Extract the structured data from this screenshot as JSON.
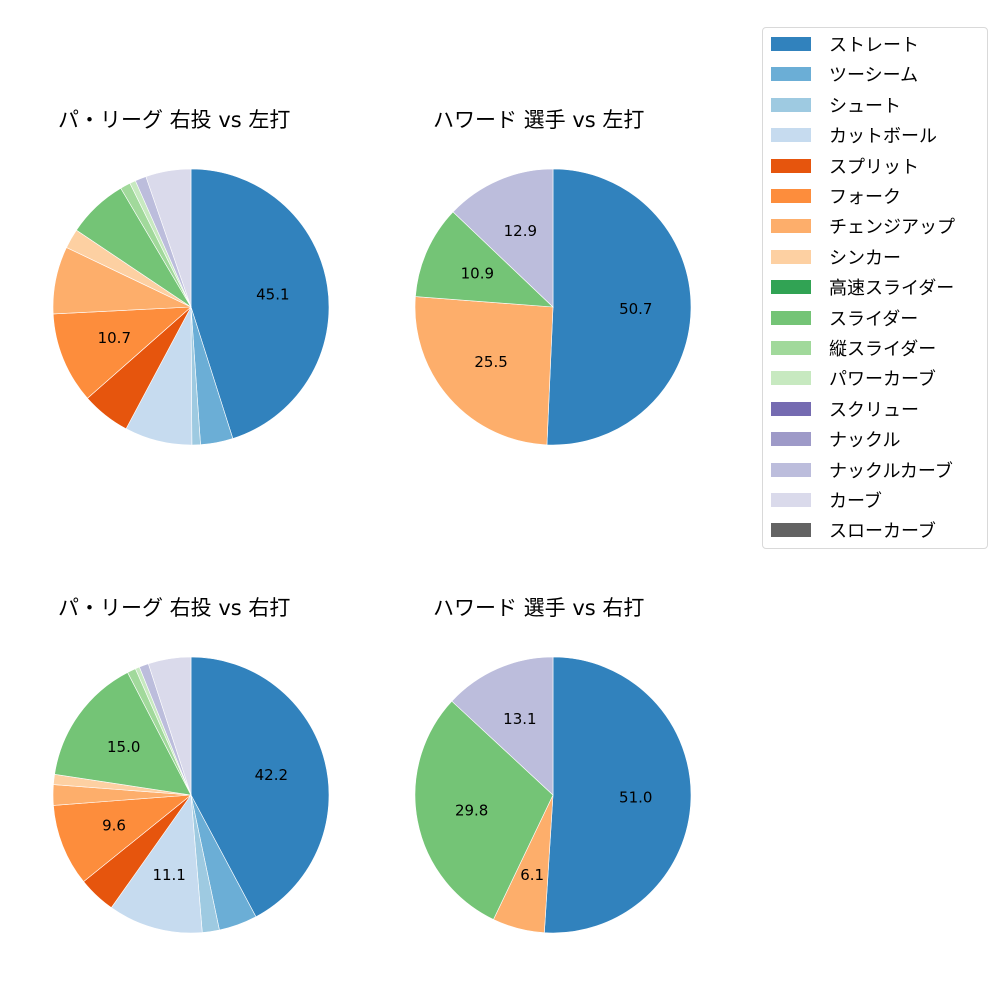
{
  "legend": {
    "items": [
      {
        "label": "ストレート",
        "color": "#3182bd"
      },
      {
        "label": "ツーシーム",
        "color": "#6baed6"
      },
      {
        "label": "シュート",
        "color": "#9ecae1"
      },
      {
        "label": "カットボール",
        "color": "#c6dbef"
      },
      {
        "label": "スプリット",
        "color": "#e6550d"
      },
      {
        "label": "フォーク",
        "color": "#fd8d3c"
      },
      {
        "label": "チェンジアップ",
        "color": "#fdae6b"
      },
      {
        "label": "シンカー",
        "color": "#fdd0a2"
      },
      {
        "label": "高速スライダー",
        "color": "#31a354"
      },
      {
        "label": "スライダー",
        "color": "#74c476"
      },
      {
        "label": "縦スライダー",
        "color": "#a1d99b"
      },
      {
        "label": "パワーカーブ",
        "color": "#c7e9c0"
      },
      {
        "label": "スクリュー",
        "color": "#756bb1"
      },
      {
        "label": "ナックル",
        "color": "#9e9ac8"
      },
      {
        "label": "ナックルカーブ",
        "color": "#bcbddc"
      },
      {
        "label": "カーブ",
        "color": "#dadaeb"
      },
      {
        "label": "スローカーブ",
        "color": "#636363"
      }
    ]
  },
  "panels": [
    {
      "title": "パ・リーグ 右投 vs 左打"
    },
    {
      "title": "ハワード 選手 vs 左打"
    },
    {
      "title": "パ・リーグ 右投 vs 右打"
    },
    {
      "title": "ハワード 選手 vs 右打"
    }
  ],
  "chart_data": [
    {
      "type": "pie",
      "title": "パ・リーグ 右投 vs 左打",
      "categories": [
        "ストレート",
        "ツーシーム",
        "シュート",
        "カットボール",
        "スプリット",
        "フォーク",
        "チェンジアップ",
        "シンカー",
        "スライダー",
        "縦スライダー",
        "パワーカーブ",
        "ナックルカーブ",
        "カーブ"
      ],
      "values": [
        45.1,
        3.8,
        1.0,
        7.9,
        5.7,
        10.7,
        7.9,
        2.3,
        7.1,
        1.2,
        0.7,
        1.3,
        5.3
      ],
      "labeled": [
        45.1,
        null,
        null,
        null,
        null,
        10.7,
        null,
        null,
        null,
        null,
        null,
        null,
        null
      ],
      "start_angle": 90,
      "direction": "clockwise"
    },
    {
      "type": "pie",
      "title": "ハワード 選手 vs 左打",
      "categories": [
        "ストレート",
        "チェンジアップ",
        "スライダー",
        "ナックルカーブ"
      ],
      "values": [
        50.7,
        25.5,
        10.9,
        12.9
      ],
      "labeled": [
        50.7,
        25.5,
        10.9,
        12.9
      ],
      "start_angle": 90,
      "direction": "clockwise"
    },
    {
      "type": "pie",
      "title": "パ・リーグ 右投 vs 右打",
      "categories": [
        "ストレート",
        "ツーシーム",
        "シュート",
        "カットボール",
        "スプリット",
        "フォーク",
        "チェンジアップ",
        "シンカー",
        "スライダー",
        "縦スライダー",
        "パワーカーブ",
        "ナックルカーブ",
        "カーブ"
      ],
      "values": [
        42.2,
        4.5,
        2.0,
        11.1,
        4.4,
        9.6,
        2.4,
        1.2,
        15.0,
        1.0,
        0.5,
        1.1,
        5.0
      ],
      "labeled": [
        42.2,
        null,
        null,
        11.1,
        null,
        9.6,
        null,
        null,
        15.0,
        null,
        null,
        null,
        null
      ],
      "start_angle": 90,
      "direction": "clockwise"
    },
    {
      "type": "pie",
      "title": "ハワード 選手 vs 右打",
      "categories": [
        "ストレート",
        "チェンジアップ",
        "スライダー",
        "ナックルカーブ"
      ],
      "values": [
        51.0,
        6.1,
        29.8,
        13.1
      ],
      "labeled": [
        51.0,
        6.1,
        29.8,
        13.1
      ],
      "start_angle": 90,
      "direction": "clockwise"
    }
  ]
}
